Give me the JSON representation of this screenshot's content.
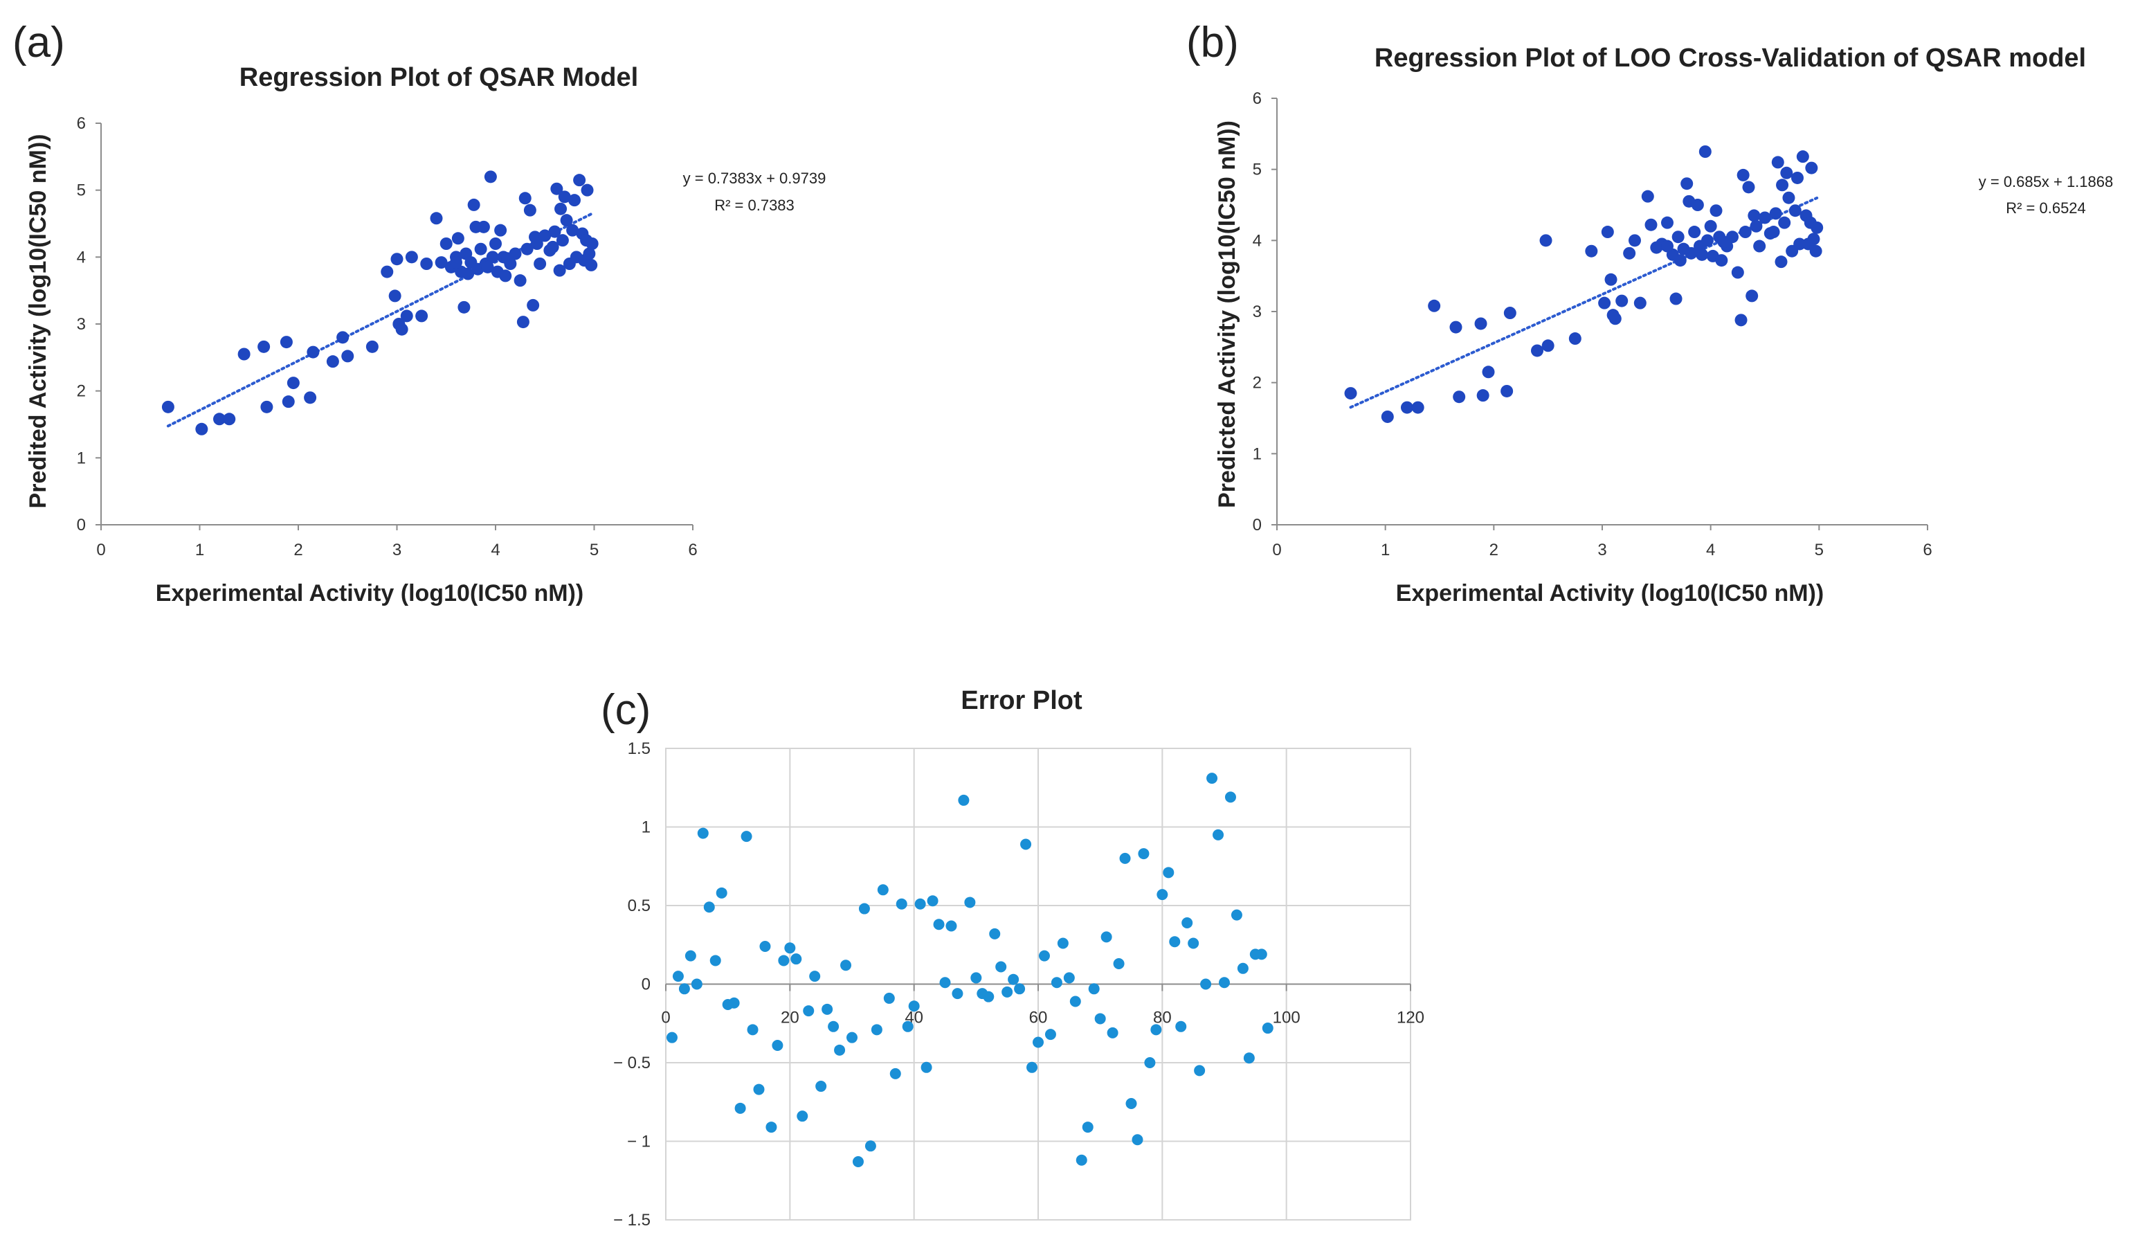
{
  "chart_data": [
    {
      "id": "a",
      "panel_label": "(a)",
      "type": "scatter",
      "title": "Regression Plot of QSAR Model",
      "xlabel": "Experimental Activity (log10(IC50 nM))",
      "ylabel": "Predited Activity (log10(IC50 nM))",
      "xlim": [
        0,
        6
      ],
      "ylim": [
        0,
        6
      ],
      "xticks": [
        "0",
        "1",
        "2",
        "3",
        "4",
        "5",
        "6"
      ],
      "yticks": [
        "0",
        "1",
        "2",
        "3",
        "4",
        "5",
        "6"
      ],
      "grid": false,
      "marker_color": "#1f47c0",
      "trendline": {
        "slope": 0.7383,
        "intercept": 0.9739,
        "x_range": [
          0.68,
          4.98
        ],
        "style": "dotted"
      },
      "equation_text": "y = 0.7383x + 0.9739",
      "r2_text": "R² = 0.7383",
      "points": [
        [
          0.68,
          1.76
        ],
        [
          1.02,
          1.43
        ],
        [
          1.2,
          1.58
        ],
        [
          1.3,
          1.58
        ],
        [
          1.45,
          2.55
        ],
        [
          1.65,
          2.66
        ],
        [
          1.68,
          1.76
        ],
        [
          1.88,
          2.73
        ],
        [
          1.9,
          1.84
        ],
        [
          1.95,
          2.12
        ],
        [
          2.12,
          1.9
        ],
        [
          2.15,
          2.58
        ],
        [
          2.35,
          2.44
        ],
        [
          2.45,
          2.8
        ],
        [
          2.5,
          2.52
        ],
        [
          2.75,
          2.66
        ],
        [
          2.9,
          3.78
        ],
        [
          2.98,
          3.42
        ],
        [
          3.0,
          3.97
        ],
        [
          3.02,
          3.0
        ],
        [
          3.05,
          2.92
        ],
        [
          3.1,
          3.12
        ],
        [
          3.15,
          4.0
        ],
        [
          3.25,
          3.12
        ],
        [
          3.3,
          3.9
        ],
        [
          3.4,
          4.58
        ],
        [
          3.45,
          3.92
        ],
        [
          3.5,
          4.2
        ],
        [
          3.55,
          3.85
        ],
        [
          3.6,
          4.0
        ],
        [
          3.62,
          4.28
        ],
        [
          3.65,
          3.78
        ],
        [
          3.68,
          3.25
        ],
        [
          3.7,
          4.05
        ],
        [
          3.72,
          3.75
        ],
        [
          3.75,
          3.92
        ],
        [
          3.78,
          4.78
        ],
        [
          3.8,
          4.45
        ],
        [
          3.82,
          3.82
        ],
        [
          3.85,
          4.12
        ],
        [
          3.88,
          4.45
        ],
        [
          3.9,
          3.9
        ],
        [
          3.95,
          5.2
        ],
        [
          3.97,
          4.0
        ],
        [
          4.0,
          4.2
        ],
        [
          4.02,
          3.78
        ],
        [
          4.05,
          4.4
        ],
        [
          4.08,
          4.0
        ],
        [
          4.1,
          3.72
        ],
        [
          4.15,
          3.9
        ],
        [
          4.2,
          4.05
        ],
        [
          4.25,
          3.65
        ],
        [
          4.28,
          3.03
        ],
        [
          4.3,
          4.88
        ],
        [
          4.32,
          4.12
        ],
        [
          4.35,
          4.7
        ],
        [
          4.38,
          3.28
        ],
        [
          4.4,
          4.3
        ],
        [
          4.42,
          4.2
        ],
        [
          4.45,
          3.9
        ],
        [
          4.5,
          4.32
        ],
        [
          4.55,
          4.1
        ],
        [
          4.6,
          4.38
        ],
        [
          4.62,
          5.02
        ],
        [
          4.65,
          3.8
        ],
        [
          4.68,
          4.25
        ],
        [
          4.7,
          4.9
        ],
        [
          4.72,
          4.55
        ],
        [
          4.75,
          3.9
        ],
        [
          4.78,
          4.4
        ],
        [
          4.8,
          4.85
        ],
        [
          4.82,
          4.0
        ],
        [
          4.85,
          5.15
        ],
        [
          4.88,
          4.35
        ],
        [
          4.9,
          3.95
        ],
        [
          4.92,
          4.25
        ],
        [
          4.95,
          4.05
        ],
        [
          4.97,
          3.88
        ],
        [
          4.98,
          4.2
        ],
        [
          4.93,
          5.0
        ],
        [
          3.6,
          3.92
        ],
        [
          3.92,
          3.85
        ],
        [
          4.12,
          3.98
        ],
        [
          4.58,
          4.15
        ],
        [
          4.66,
          4.72
        ]
      ]
    },
    {
      "id": "b",
      "panel_label": "(b)",
      "type": "scatter",
      "title": "Regression Plot of LOO Cross-Validation of QSAR model",
      "xlabel": "Experimental Activity (log10(IC50 nM))",
      "ylabel": "Predicted Activity (log10(IC50 nM))",
      "xlim": [
        0,
        6
      ],
      "ylim": [
        0,
        6
      ],
      "xticks": [
        "0",
        "1",
        "2",
        "3",
        "4",
        "5",
        "6"
      ],
      "yticks": [
        "0",
        "1",
        "2",
        "3",
        "4",
        "5",
        "6"
      ],
      "grid": false,
      "marker_color": "#1f47c0",
      "trendline": {
        "slope": 0.685,
        "intercept": 1.1868,
        "x_range": [
          0.68,
          4.98
        ],
        "style": "dotted"
      },
      "equation_text": "y = 0.685x + 1.1868",
      "r2_text": "R² = 0.6524",
      "points": [
        [
          0.68,
          1.85
        ],
        [
          1.02,
          1.52
        ],
        [
          1.2,
          1.65
        ],
        [
          1.3,
          1.65
        ],
        [
          1.45,
          3.08
        ],
        [
          1.65,
          2.78
        ],
        [
          1.68,
          1.8
        ],
        [
          1.88,
          2.83
        ],
        [
          1.9,
          1.82
        ],
        [
          1.95,
          2.15
        ],
        [
          2.12,
          1.88
        ],
        [
          2.15,
          2.98
        ],
        [
          2.4,
          2.45
        ],
        [
          2.48,
          4.0
        ],
        [
          2.5,
          2.52
        ],
        [
          2.75,
          2.62
        ],
        [
          2.9,
          3.85
        ],
        [
          3.02,
          3.12
        ],
        [
          3.05,
          4.12
        ],
        [
          3.08,
          3.45
        ],
        [
          3.1,
          2.95
        ],
        [
          3.12,
          2.9
        ],
        [
          3.18,
          3.15
        ],
        [
          3.25,
          3.82
        ],
        [
          3.3,
          4.0
        ],
        [
          3.35,
          3.12
        ],
        [
          3.42,
          4.62
        ],
        [
          3.45,
          4.22
        ],
        [
          3.5,
          3.9
        ],
        [
          3.55,
          3.95
        ],
        [
          3.6,
          4.25
        ],
        [
          3.65,
          3.8
        ],
        [
          3.68,
          3.18
        ],
        [
          3.7,
          4.05
        ],
        [
          3.72,
          3.72
        ],
        [
          3.75,
          3.88
        ],
        [
          3.78,
          4.8
        ],
        [
          3.8,
          4.55
        ],
        [
          3.82,
          3.82
        ],
        [
          3.85,
          4.12
        ],
        [
          3.88,
          4.5
        ],
        [
          3.9,
          3.92
        ],
        [
          3.95,
          5.25
        ],
        [
          3.97,
          4.0
        ],
        [
          4.0,
          4.2
        ],
        [
          4.02,
          3.78
        ],
        [
          4.05,
          4.42
        ],
        [
          4.08,
          4.05
        ],
        [
          4.1,
          3.72
        ],
        [
          4.15,
          3.92
        ],
        [
          4.2,
          4.05
        ],
        [
          4.25,
          3.55
        ],
        [
          4.28,
          2.88
        ],
        [
          4.3,
          4.92
        ],
        [
          4.32,
          4.12
        ],
        [
          4.35,
          4.75
        ],
        [
          4.38,
          3.22
        ],
        [
          4.4,
          4.35
        ],
        [
          4.42,
          4.2
        ],
        [
          4.45,
          3.92
        ],
        [
          4.5,
          4.32
        ],
        [
          4.55,
          4.1
        ],
        [
          4.6,
          4.38
        ],
        [
          4.62,
          5.1
        ],
        [
          4.65,
          3.7
        ],
        [
          4.68,
          4.25
        ],
        [
          4.7,
          4.95
        ],
        [
          4.72,
          4.6
        ],
        [
          4.75,
          3.85
        ],
        [
          4.78,
          4.42
        ],
        [
          4.8,
          4.88
        ],
        [
          4.82,
          3.95
        ],
        [
          4.85,
          5.18
        ],
        [
          4.88,
          4.35
        ],
        [
          4.9,
          3.95
        ],
        [
          4.92,
          4.25
        ],
        [
          4.95,
          4.02
        ],
        [
          4.97,
          3.85
        ],
        [
          4.98,
          4.18
        ],
        [
          4.93,
          5.02
        ],
        [
          3.6,
          3.92
        ],
        [
          3.92,
          3.8
        ],
        [
          4.12,
          3.98
        ],
        [
          4.58,
          4.12
        ],
        [
          4.66,
          4.78
        ]
      ]
    },
    {
      "id": "c",
      "panel_label": "(c)",
      "type": "scatter",
      "title": "Error Plot",
      "xlabel": "",
      "ylabel": "",
      "xlim": [
        0,
        120
      ],
      "ylim": [
        -1.5,
        1.5
      ],
      "xticks": [
        "0",
        "20",
        "40",
        "60",
        "80",
        "100",
        "120"
      ],
      "yticks": [
        "1.5",
        "1",
        "0.5",
        "0",
        "-0.5",
        "-1",
        "-1.5"
      ],
      "grid": true,
      "marker_color": "#1a8fd6",
      "points": [
        [
          1,
          -0.34
        ],
        [
          2,
          0.05
        ],
        [
          3,
          -0.03
        ],
        [
          4,
          0.18
        ],
        [
          5,
          0.0
        ],
        [
          6,
          0.96
        ],
        [
          7,
          0.49
        ],
        [
          8,
          0.15
        ],
        [
          9,
          0.58
        ],
        [
          10,
          -0.13
        ],
        [
          11,
          -0.12
        ],
        [
          12,
          -0.79
        ],
        [
          13,
          0.94
        ],
        [
          14,
          -0.29
        ],
        [
          15,
          -0.67
        ],
        [
          16,
          0.24
        ],
        [
          17,
          -0.91
        ],
        [
          18,
          -0.39
        ],
        [
          19,
          0.15
        ],
        [
          20,
          0.23
        ],
        [
          21,
          0.16
        ],
        [
          22,
          -0.84
        ],
        [
          23,
          -0.17
        ],
        [
          24,
          0.05
        ],
        [
          25,
          -0.65
        ],
        [
          26,
          -0.16
        ],
        [
          27,
          -0.27
        ],
        [
          28,
          -0.42
        ],
        [
          29,
          0.12
        ],
        [
          30,
          -0.34
        ],
        [
          31,
          -1.13
        ],
        [
          32,
          0.48
        ],
        [
          33,
          -1.03
        ],
        [
          34,
          -0.29
        ],
        [
          35,
          0.6
        ],
        [
          36,
          -0.09
        ],
        [
          37,
          -0.57
        ],
        [
          38,
          0.51
        ],
        [
          39,
          -0.27
        ],
        [
          40,
          -0.14
        ],
        [
          41,
          0.51
        ],
        [
          42,
          -0.53
        ],
        [
          43,
          0.53
        ],
        [
          44,
          0.38
        ],
        [
          45,
          0.01
        ],
        [
          46,
          0.37
        ],
        [
          47,
          -0.06
        ],
        [
          48,
          1.17
        ],
        [
          49,
          0.52
        ],
        [
          50,
          0.04
        ],
        [
          51,
          -0.06
        ],
        [
          52,
          -0.08
        ],
        [
          53,
          0.32
        ],
        [
          54,
          0.11
        ],
        [
          55,
          -0.05
        ],
        [
          56,
          0.03
        ],
        [
          57,
          -0.03
        ],
        [
          58,
          0.89
        ],
        [
          59,
          -0.53
        ],
        [
          60,
          -0.37
        ],
        [
          61,
          0.18
        ],
        [
          62,
          -0.32
        ],
        [
          63,
          0.01
        ],
        [
          64,
          0.26
        ],
        [
          65,
          0.04
        ],
        [
          66,
          -0.11
        ],
        [
          67,
          -1.12
        ],
        [
          68,
          -0.91
        ],
        [
          69,
          -0.03
        ],
        [
          70,
          -0.22
        ],
        [
          71,
          0.3
        ],
        [
          72,
          -0.31
        ],
        [
          73,
          0.13
        ],
        [
          74,
          0.8
        ],
        [
          75,
          -0.76
        ],
        [
          76,
          -0.99
        ],
        [
          77,
          0.83
        ],
        [
          78,
          -0.5
        ],
        [
          79,
          -0.29
        ],
        [
          80,
          0.57
        ],
        [
          81,
          0.71
        ],
        [
          82,
          0.27
        ],
        [
          83,
          -0.27
        ],
        [
          84,
          0.39
        ],
        [
          85,
          0.26
        ],
        [
          86,
          -0.55
        ],
        [
          87,
          0.0
        ],
        [
          88,
          1.31
        ],
        [
          89,
          0.95
        ],
        [
          90,
          0.01
        ],
        [
          91,
          1.19
        ],
        [
          92,
          0.44
        ],
        [
          93,
          0.1
        ],
        [
          94,
          -0.47
        ],
        [
          95,
          0.19
        ],
        [
          96,
          0.19
        ],
        [
          97,
          -0.28
        ]
      ]
    }
  ]
}
